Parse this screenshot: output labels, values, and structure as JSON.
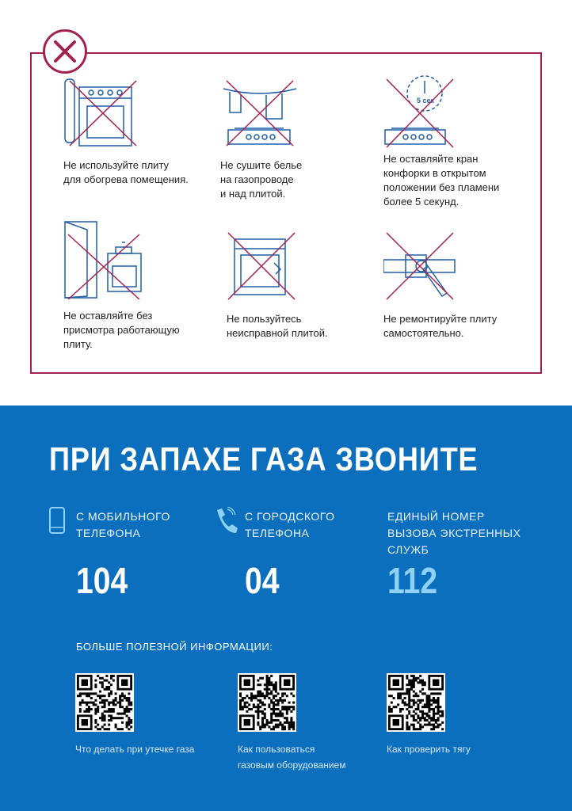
{
  "colors": {
    "frame": "#a3234f",
    "blue": "#0b6fbd",
    "accent_number": "#8fd0f5",
    "icon_stroke": "#1f5fa8"
  },
  "prohibition_icon": "crossed-circle-icon",
  "rules": [
    {
      "icon": "stove-heater-icon",
      "text": "Не используйте плиту\nдля обогрева помещения."
    },
    {
      "icon": "laundry-over-stove-icon",
      "text": "Не сушите белье\nна газопроводе\nи над плитой."
    },
    {
      "icon": "timer-burner-icon",
      "timer_label": "5 сек",
      "text": "Не оставляйте кран\nконфорки в открытом\nположении без пламени\nболее 5 секунд."
    },
    {
      "icon": "unattended-stove-icon",
      "text": "Не оставляйте без\nприсмотра работающую\nплиту."
    },
    {
      "icon": "broken-stove-icon",
      "text": "Не пользуйтесь\nнеисправной плитой."
    },
    {
      "icon": "wrench-pipe-icon",
      "text": "Не ремонтируйте плиту\nсамостоятельно."
    }
  ],
  "emergency": {
    "title": "ПРИ ЗАПАХЕ ГАЗА ЗВОНИТЕ",
    "columns": [
      {
        "icon": "mobile-phone-icon",
        "label": "С мобильного\nтелефона",
        "number": "104"
      },
      {
        "icon": "landline-phone-icon",
        "label": "С городского\nтелефона",
        "number": "04"
      },
      {
        "label": "Единый номер\nвызова экстренных\nслужб",
        "number": "112"
      }
    ],
    "more_info": "БОЛЬШЕ ПОЛЕЗНОЙ ИНФОРМАЦИИ:",
    "qr_links": [
      {
        "caption": "Что делать при утечке газа"
      },
      {
        "caption": "Как пользоваться\nгазовым оборудованием"
      },
      {
        "caption": "Как проверить тягу"
      }
    ]
  }
}
